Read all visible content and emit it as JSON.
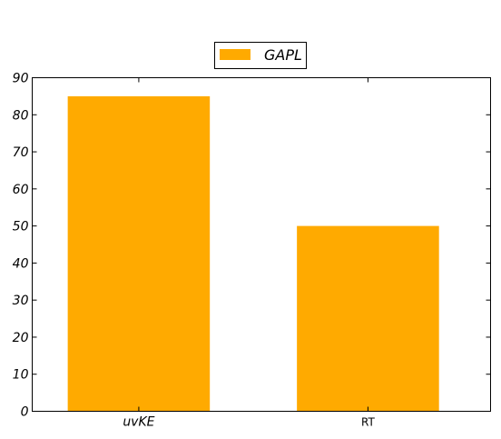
{
  "chart_data": {
    "type": "bar",
    "categories": [
      "uvKE",
      "RT"
    ],
    "category_label_italic": [
      true,
      false
    ],
    "series": [
      {
        "name": "GAPL",
        "values": [
          85,
          50
        ],
        "color": "#ffaa00"
      }
    ],
    "ylim": [
      0,
      90
    ],
    "yticks": [
      0,
      10,
      20,
      30,
      40,
      50,
      60,
      70,
      80,
      90
    ],
    "legend_placement": "top-center",
    "grid": false
  }
}
